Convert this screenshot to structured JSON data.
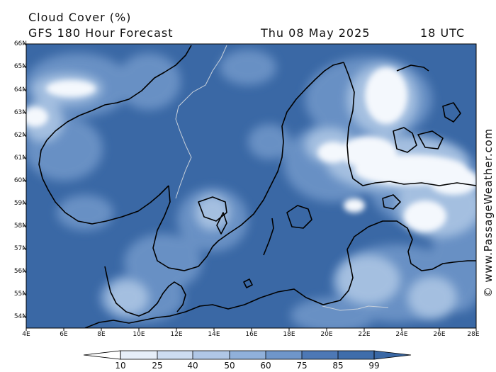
{
  "header": {
    "title": "Cloud Cover (%)",
    "model_line": "GFS 180 Hour Forecast",
    "valid_date": "Thu 08 May 2025",
    "valid_time": "18 UTC"
  },
  "credit": "© www.PassageWeather.com",
  "map": {
    "projection": "lat-lon",
    "lat_range": [
      53.6,
      66.0
    ],
    "lon_range": [
      4,
      28
    ],
    "lat_labels": [
      "66N",
      "65N",
      "64N",
      "63N",
      "62N",
      "61N",
      "60N",
      "59N",
      "58N",
      "57N",
      "56N",
      "55N",
      "54N"
    ],
    "lon_labels": [
      "4E",
      "6E",
      "8E",
      "10E",
      "12E",
      "14E",
      "16E",
      "18E",
      "20E",
      "22E",
      "24E",
      "26E",
      "28E"
    ],
    "colors": {
      "background": "#3a68a5",
      "mid": "#6e95c8",
      "light": "#a8c2e2",
      "clear": "#f4f8fd",
      "coast": "#000000",
      "border": "#c8d0da"
    }
  },
  "colorbar": {
    "ticks": [
      "10",
      "25",
      "40",
      "50",
      "60",
      "75",
      "85",
      "99"
    ],
    "colors": [
      "#ffffff",
      "#e6eef8",
      "#cddcf0",
      "#b0c7e6",
      "#90b0da",
      "#6f96ca",
      "#4d78b5",
      "#3a68a5"
    ]
  }
}
